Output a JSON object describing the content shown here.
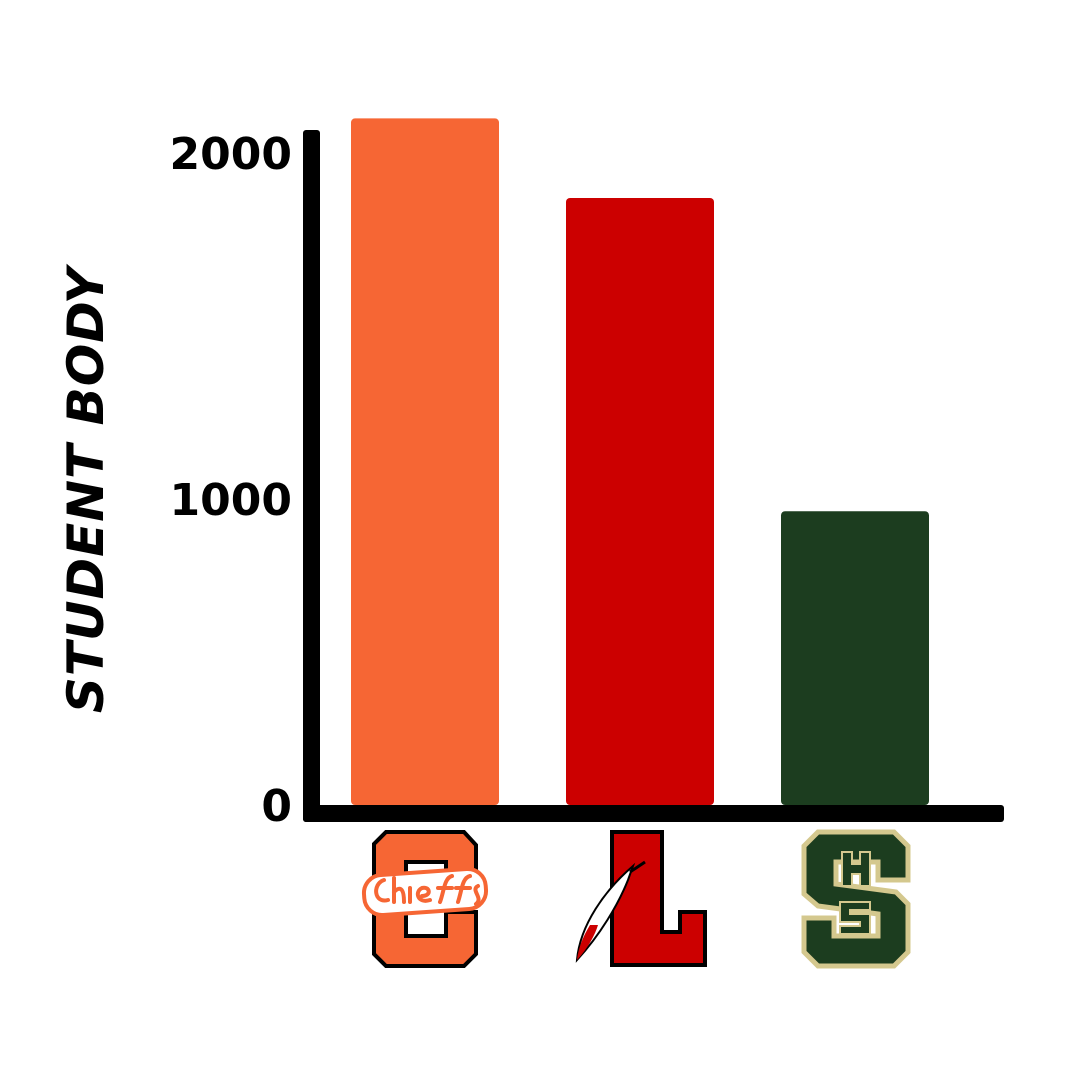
{
  "chart_data": {
    "type": "bar",
    "title": "",
    "xlabel": "",
    "ylabel": "STUDENT BODY",
    "categories": [
      "Chiefs (C)",
      "L",
      "HS"
    ],
    "values": [
      2100,
      1870,
      960
    ],
    "colors": [
      "#F66634",
      "#CC0000",
      "#1C3D1F"
    ],
    "yticks": [
      0,
      1000,
      2000
    ],
    "ylim": [
      0,
      2000
    ],
    "grid": false,
    "legend": "none",
    "x_tick_logos": [
      {
        "text": "Chiefs",
        "letter": "C",
        "fill": "#F66634",
        "outline": "#000000"
      },
      {
        "letter": "L",
        "fill": "#CC0000",
        "outline": "#000000",
        "icon": "feather-icon"
      },
      {
        "letter": "S",
        "inner": "HS",
        "fill": "#1C3D1F",
        "outline": "#D4C88E"
      }
    ]
  }
}
